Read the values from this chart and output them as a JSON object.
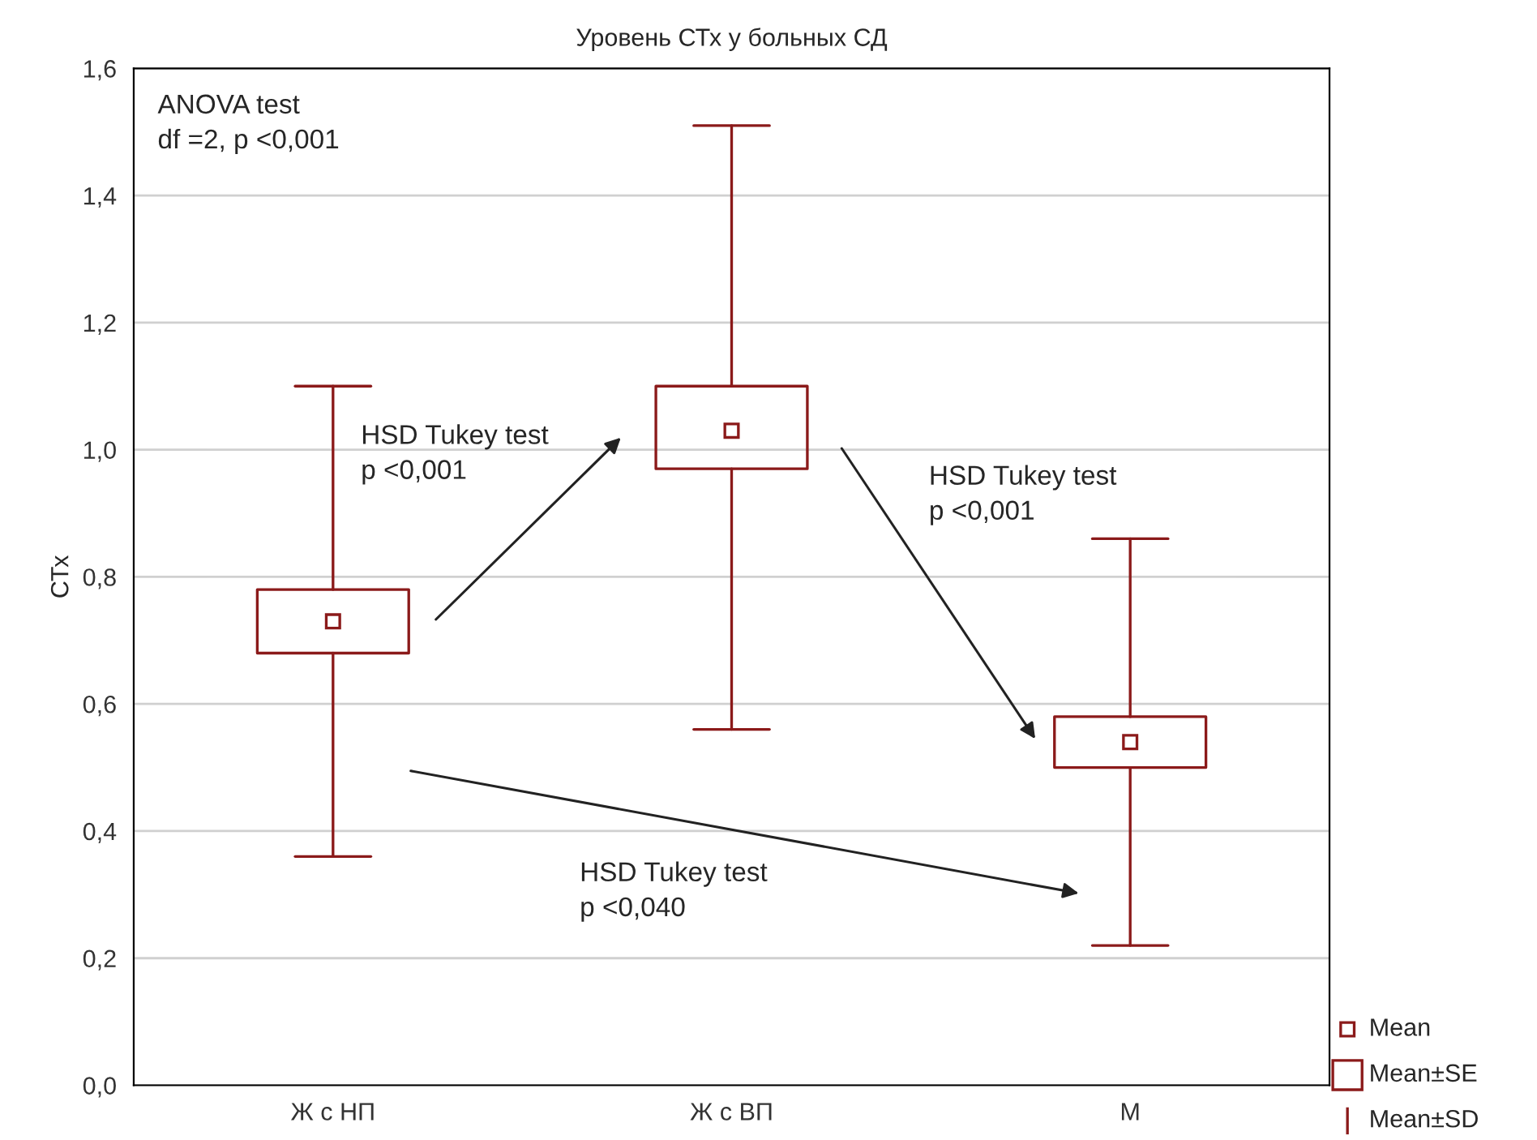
{
  "chart_data": {
    "type": "box",
    "title": "Уровень СТх у больных СД",
    "ylabel": "СТх",
    "categories": [
      "Ж с НП",
      "Ж с ВП",
      "М"
    ],
    "series": [
      {
        "color": "#8b1a1a",
        "boxes": [
          {
            "low": 0.36,
            "q1": 0.68,
            "median": 0.73,
            "q3": 0.78,
            "high": 1.1
          },
          {
            "low": 0.56,
            "q1": 0.97,
            "median": 1.03,
            "q3": 1.1,
            "high": 1.51
          },
          {
            "low": 0.22,
            "q1": 0.5,
            "median": 0.54,
            "q3": 0.58,
            "high": 0.86
          }
        ]
      }
    ],
    "ylim": [
      0,
      1.6
    ],
    "yticks": [
      {
        "value": 0,
        "label": "0,0"
      },
      {
        "value": 0.2,
        "label": "0,2"
      },
      {
        "value": 0.4,
        "label": "0,4"
      },
      {
        "value": 0.6,
        "label": "0,6"
      },
      {
        "value": 0.8,
        "label": "0,8"
      },
      {
        "value": 1.0,
        "label": "1,0"
      },
      {
        "value": 1.2,
        "label": "1,2"
      },
      {
        "value": 1.4,
        "label": "1,4"
      },
      {
        "value": 1.6,
        "label": "1,6"
      }
    ],
    "grid": "y",
    "marker": "square",
    "annotations": [
      "ANOVA test\ndf =2, p <0,001",
      "HSD Tukey test\np <0,001",
      "HSD Tukey test\np <0,001",
      "HSD Tukey test\np <0,040",
      "Mean",
      "Mean±SE",
      "Mean±SD"
    ]
  }
}
